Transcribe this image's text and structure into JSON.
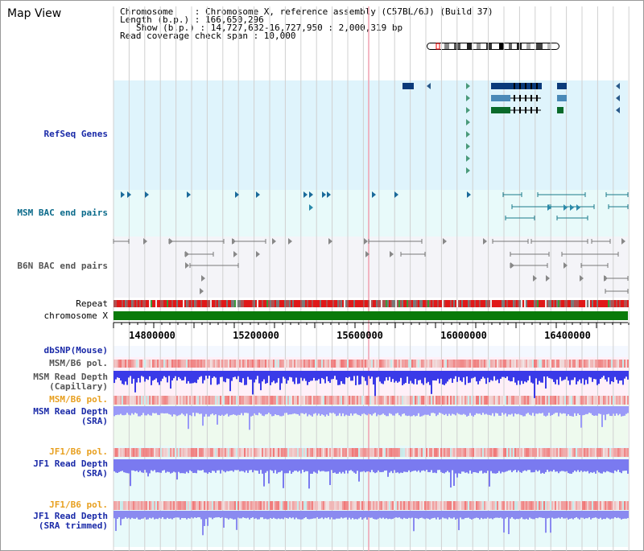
{
  "title": "Map View",
  "info": {
    "line1": "Chromosome    : Chromosome X, reference assembly (C57BL/6J) (Build 37)",
    "line2": "Length (b.p.) : 166,650,296",
    "line3": "Show (b.p.) : 14,727,632-16,727,950 : 2,000,319 bp",
    "line4": "Read coverage check span : 10,000"
  },
  "tracks": {
    "refseq": "RefSeq Genes",
    "msm_bac": "MSM BAC end pairs",
    "b6n_bac": "B6N BAC end pairs",
    "repeat": "Repeat",
    "chromosome": "chromosome X",
    "dbsnp": "dbSNP(Mouse)",
    "msm_b6_pol_1": "MSM/B6 pol.",
    "msm_depth_cap_1": "MSM Read Depth",
    "msm_depth_cap_2": "(Capillary)",
    "msm_b6_pol_2": "MSM/B6 pol.",
    "msm_depth_sra_1": "MSM Read Depth",
    "msm_depth_sra_2": "(SRA)",
    "jf1_pol_1": "JF1/B6 pol.",
    "jf1_depth_1": "JF1 Read Depth",
    "jf1_depth_2": "(SRA)",
    "jf1_pol_2": "JF1/B6 pol.",
    "jf1_trim_1": "JF1 Read Depth",
    "jf1_trim_2": "(SRA trimmed)"
  },
  "axis": {
    "ticks": [
      "14800000",
      "15200000",
      "15600000",
      "16000000",
      "16400000"
    ]
  },
  "colors": {
    "refseq_bg": "#dff4fc",
    "msm_bac_bg": "#e8fafa",
    "b6n_bac_bg": "#f4f4f8",
    "chrom": "#0a7a0a",
    "depth_blue": "#3a3ae8",
    "pol_red": "#e83030"
  }
}
